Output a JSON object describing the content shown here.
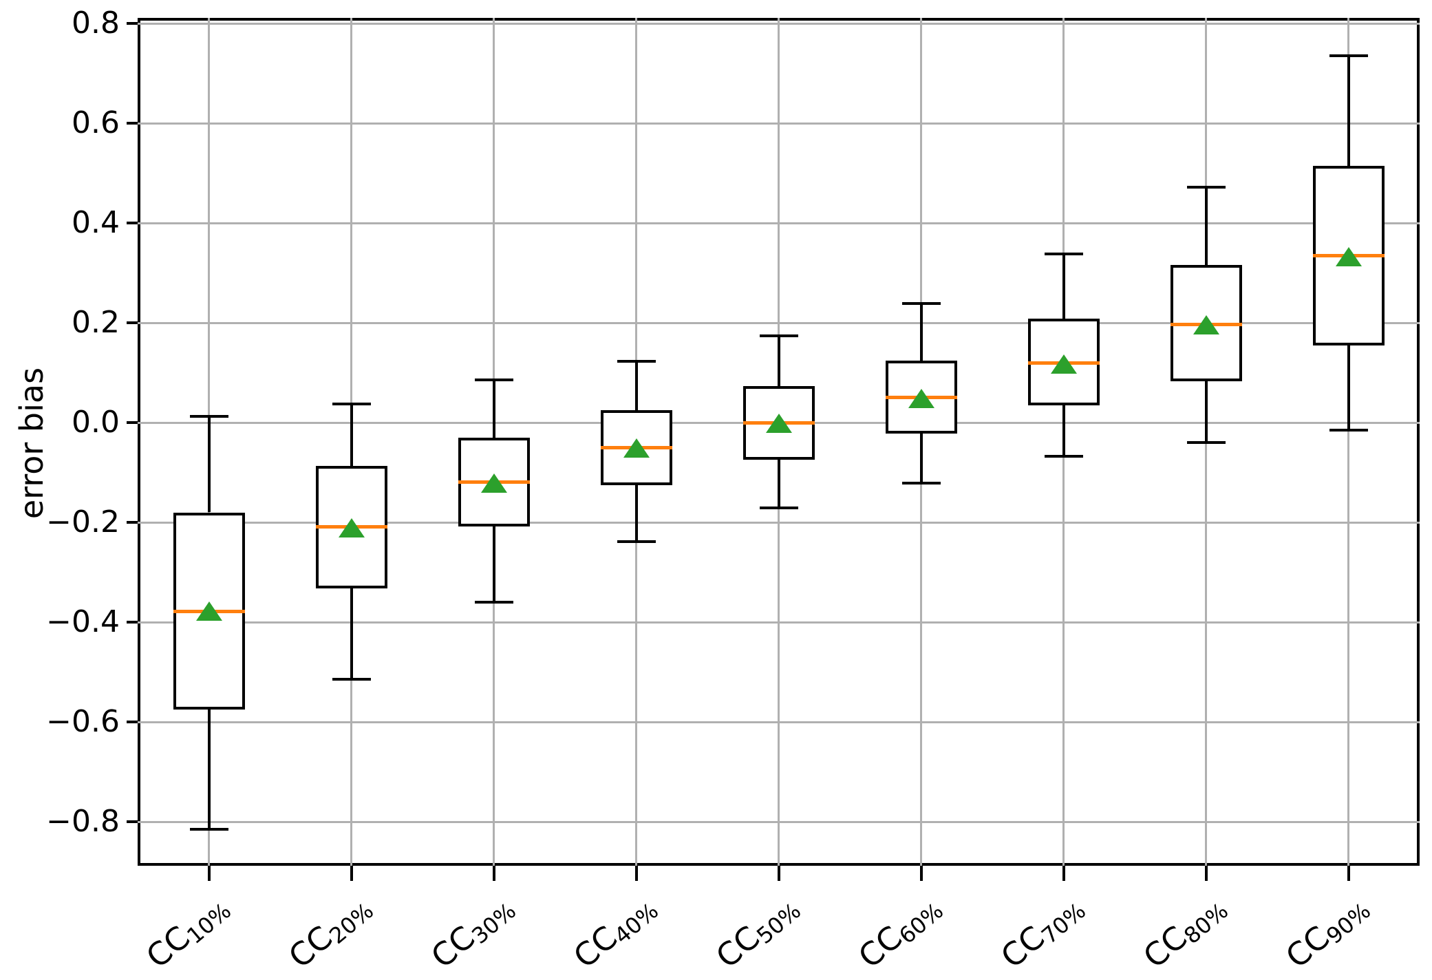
{
  "figure": {
    "background_color": "#ffffff",
    "frame_color": "#000000",
    "grid_color": "#b0b0b0"
  },
  "chart_data": {
    "type": "boxplot",
    "title": "",
    "xlabel": "",
    "ylabel": "error bias",
    "grid": true,
    "legend": "none",
    "ylim": [
      -0.89,
      0.82
    ],
    "yticks": [
      0.8,
      0.6,
      0.4,
      0.2,
      0.0,
      -0.2,
      -0.4,
      -0.6,
      -0.8
    ],
    "ytick_labels": [
      "0.8",
      "0.6",
      "0.4",
      "0.2",
      "0.0",
      "−0.2",
      "−0.4",
      "−0.6",
      "−0.8"
    ],
    "box_color": "#000000",
    "median_color": "#ff7f0e",
    "mean_marker": "triangle-up",
    "mean_marker_color": "#2ca02c",
    "categories": [
      "CC10%",
      "CC20%",
      "CC30%",
      "CC40%",
      "CC50%",
      "CC60%",
      "CC70%",
      "CC80%",
      "CC90%"
    ],
    "series": [
      {
        "label_prefix": "CC",
        "label_sub": "10%",
        "whisker_low": -0.815,
        "q1": -0.575,
        "median": -0.378,
        "mean": -0.378,
        "q3": -0.18,
        "whisker_high": 0.012
      },
      {
        "label_prefix": "CC",
        "label_sub": "20%",
        "whisker_low": -0.515,
        "q1": -0.332,
        "median": -0.209,
        "mean": -0.211,
        "q3": -0.087,
        "whisker_high": 0.037
      },
      {
        "label_prefix": "CC",
        "label_sub": "30%",
        "whisker_low": -0.36,
        "q1": -0.208,
        "median": -0.119,
        "mean": -0.122,
        "q3": -0.03,
        "whisker_high": 0.085
      },
      {
        "label_prefix": "CC",
        "label_sub": "40%",
        "whisker_low": -0.239,
        "q1": -0.126,
        "median": -0.05,
        "mean": -0.051,
        "q3": 0.025,
        "whisker_high": 0.123
      },
      {
        "label_prefix": "CC",
        "label_sub": "50%",
        "whisker_low": -0.171,
        "q1": -0.075,
        "median": 0.0,
        "mean": -0.002,
        "q3": 0.073,
        "whisker_high": 0.174
      },
      {
        "label_prefix": "CC",
        "label_sub": "60%",
        "whisker_low": -0.121,
        "q1": -0.022,
        "median": 0.05,
        "mean": 0.048,
        "q3": 0.124,
        "whisker_high": 0.239
      },
      {
        "label_prefix": "CC",
        "label_sub": "70%",
        "whisker_low": -0.068,
        "q1": 0.034,
        "median": 0.119,
        "mean": 0.117,
        "q3": 0.208,
        "whisker_high": 0.338
      },
      {
        "label_prefix": "CC",
        "label_sub": "80%",
        "whisker_low": -0.04,
        "q1": 0.083,
        "median": 0.197,
        "mean": 0.196,
        "q3": 0.316,
        "whisker_high": 0.472
      },
      {
        "label_prefix": "CC",
        "label_sub": "90%",
        "whisker_low": -0.015,
        "q1": 0.155,
        "median": 0.334,
        "mean": 0.332,
        "q3": 0.514,
        "whisker_high": 0.735
      }
    ]
  }
}
